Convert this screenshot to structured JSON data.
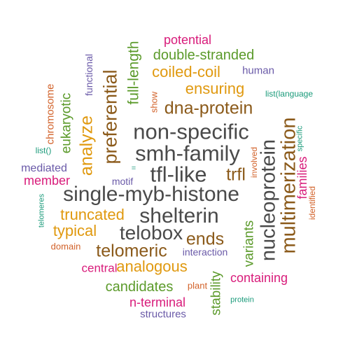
{
  "colors": {
    "gray": "#4a4a4a",
    "brown": "#8b5a1a",
    "green": "#5b9a2a",
    "orange": "#e0990f",
    "magenta": "#d81b7a",
    "purple": "#6a5aa8",
    "teal": "#1a9a7a",
    "rust": "#d2622a"
  },
  "words": [
    {
      "text": "non-specific",
      "color": "#4a4a4a"
    },
    {
      "text": "smh-family",
      "color": "#4a4a4a"
    },
    {
      "text": "tfl-like",
      "color": "#4a4a4a"
    },
    {
      "text": "single-myb-histone",
      "color": "#4a4a4a"
    },
    {
      "text": "shelterin",
      "color": "#4a4a4a"
    },
    {
      "text": "telobox",
      "color": "#4a4a4a"
    },
    {
      "text": "nucleoprotein",
      "color": "#4a4a4a"
    },
    {
      "text": "multimerization",
      "color": "#8b5a1a"
    },
    {
      "text": "preferential",
      "color": "#8b5a1a"
    },
    {
      "text": "dna-protein",
      "color": "#8b5a1a"
    },
    {
      "text": "telomeric",
      "color": "#8b5a1a"
    },
    {
      "text": "ends",
      "color": "#8b5a1a"
    },
    {
      "text": "trfl",
      "color": "#8b5a1a"
    },
    {
      "text": "analyze",
      "color": "#e0990f"
    },
    {
      "text": "coiled-coil",
      "color": "#e0990f"
    },
    {
      "text": "ensuring",
      "color": "#e0990f"
    },
    {
      "text": "truncated",
      "color": "#e0990f"
    },
    {
      "text": "typical",
      "color": "#e0990f"
    },
    {
      "text": "analogous",
      "color": "#e0990f"
    },
    {
      "text": "full-length",
      "color": "#5b9a2a"
    },
    {
      "text": "double-stranded",
      "color": "#5b9a2a"
    },
    {
      "text": "eukaryotic",
      "color": "#5b9a2a"
    },
    {
      "text": "candidates",
      "color": "#5b9a2a"
    },
    {
      "text": "variants",
      "color": "#5b9a2a"
    },
    {
      "text": "stability",
      "color": "#5b9a2a"
    },
    {
      "text": "potential",
      "color": "#d81b7a"
    },
    {
      "text": "families",
      "color": "#d81b7a"
    },
    {
      "text": "member",
      "color": "#d81b7a"
    },
    {
      "text": "central",
      "color": "#d81b7a"
    },
    {
      "text": "containing",
      "color": "#d81b7a"
    },
    {
      "text": "n-terminal",
      "color": "#d81b7a"
    },
    {
      "text": "human",
      "color": "#6a5aa8"
    },
    {
      "text": "functional",
      "color": "#6a5aa8"
    },
    {
      "text": "mediated",
      "color": "#6a5aa8"
    },
    {
      "text": "motif",
      "color": "#6a5aa8"
    },
    {
      "text": "interaction",
      "color": "#6a5aa8"
    },
    {
      "text": "structures",
      "color": "#6a5aa8"
    },
    {
      "text": "list(language",
      "color": "#1a9a7a"
    },
    {
      "text": "specific",
      "color": "#1a9a7a"
    },
    {
      "text": "list()",
      "color": "#1a9a7a"
    },
    {
      "text": "telomeres",
      "color": "#1a9a7a"
    },
    {
      "text": "protein",
      "color": "#1a9a7a"
    },
    {
      "text": "=",
      "color": "#1a9a7a"
    },
    {
      "text": "chromosome",
      "color": "#d2622a"
    },
    {
      "text": "show",
      "color": "#d2622a"
    },
    {
      "text": "involved",
      "color": "#d2622a"
    },
    {
      "text": "identified",
      "color": "#d2622a"
    },
    {
      "text": "domain",
      "color": "#d2622a"
    },
    {
      "text": "plant",
      "color": "#d2622a"
    }
  ]
}
